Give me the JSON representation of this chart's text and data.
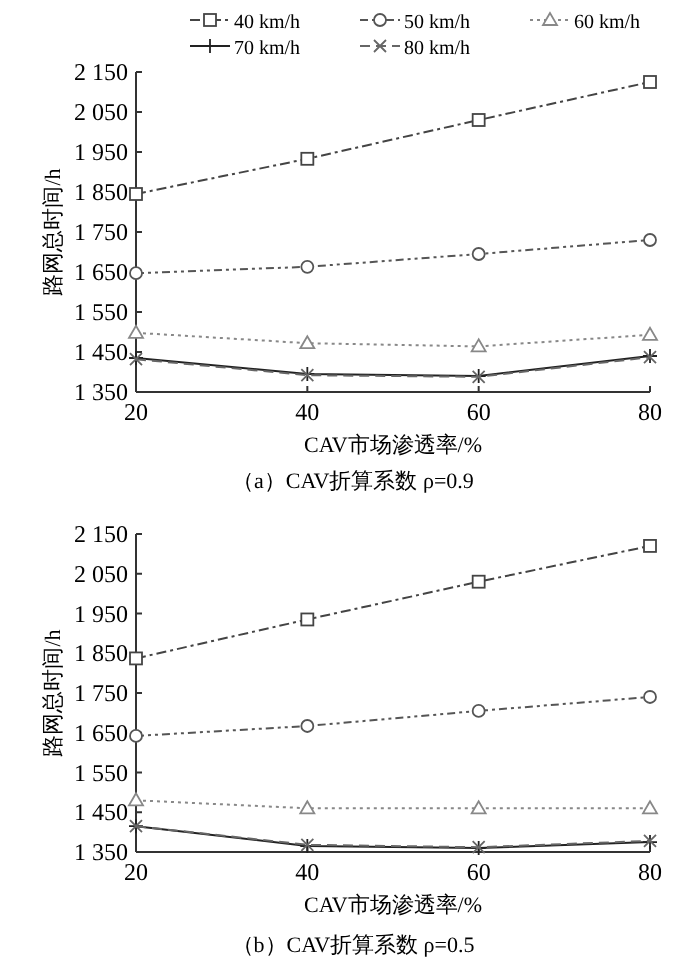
{
  "chart_data": [
    {
      "type": "line",
      "title": "（a）CAV折算系数 ρ=0.9",
      "xlabel": "CAV市场渗透率/%",
      "ylabel": "路网总时间/h",
      "legend": "top",
      "grid": false,
      "x": [
        20,
        40,
        60,
        80
      ],
      "xlim": [
        20,
        80
      ],
      "xticks": [
        20,
        40,
        60,
        80
      ],
      "ylim": [
        1350,
        2150
      ],
      "yticks": [
        {
          "value": 1350,
          "label": "1 350"
        },
        {
          "value": 1450,
          "label": "1 450"
        },
        {
          "value": 1550,
          "label": "1 550"
        },
        {
          "value": 1650,
          "label": "1 650"
        },
        {
          "value": 1750,
          "label": "1 750"
        },
        {
          "value": 1850,
          "label": "1 850"
        },
        {
          "value": 1950,
          "label": "1 950"
        },
        {
          "value": 2050,
          "label": "2 050"
        },
        {
          "value": 2150,
          "label": "2 150"
        }
      ],
      "series": [
        {
          "name": "40 km/h",
          "color": "#444444",
          "marker": "square",
          "line_style": "dashdot",
          "values": [
            1845,
            1933,
            2030,
            2125
          ]
        },
        {
          "name": "50 km/h",
          "color": "#555555",
          "marker": "circle",
          "line_style": "dashdotdot",
          "values": [
            1647,
            1663,
            1695,
            1730
          ]
        },
        {
          "name": "60 km/h",
          "color": "#888888",
          "marker": "triangle",
          "line_style": "dotted",
          "values": [
            1498,
            1472,
            1464,
            1493
          ]
        },
        {
          "name": "70 km/h",
          "color": "#222222",
          "marker": "plus",
          "line_style": "solid",
          "values": [
            1435,
            1395,
            1390,
            1440
          ]
        },
        {
          "name": "80 km/h",
          "color": "#666666",
          "marker": "cross",
          "line_style": "dashed",
          "values": [
            1432,
            1392,
            1388,
            1437
          ]
        }
      ]
    },
    {
      "type": "line",
      "title": "（b）CAV折算系数 ρ=0.5",
      "xlabel": "CAV市场渗透率/%",
      "ylabel": "路网总时间/h",
      "grid": false,
      "x": [
        20,
        40,
        60,
        80
      ],
      "xlim": [
        20,
        80
      ],
      "xticks": [
        20,
        40,
        60,
        80
      ],
      "ylim": [
        1350,
        2150
      ],
      "yticks": [
        {
          "value": 1350,
          "label": "1 350"
        },
        {
          "value": 1450,
          "label": "1 450"
        },
        {
          "value": 1550,
          "label": "1 550"
        },
        {
          "value": 1650,
          "label": "1 650"
        },
        {
          "value": 1750,
          "label": "1 750"
        },
        {
          "value": 1850,
          "label": "1 850"
        },
        {
          "value": 1950,
          "label": "1 950"
        },
        {
          "value": 2050,
          "label": "2 050"
        },
        {
          "value": 2150,
          "label": "2 150"
        }
      ],
      "series": [
        {
          "color": "#444444",
          "marker": "square",
          "line_style": "dashdot",
          "values": [
            1837,
            1935,
            2030,
            2120
          ]
        },
        {
          "color": "#555555",
          "marker": "circle",
          "line_style": "dashdotdot",
          "values": [
            1642,
            1667,
            1705,
            1740
          ]
        },
        {
          "color": "#888888",
          "marker": "triangle",
          "line_style": "dotted",
          "values": [
            1480,
            1460,
            1460,
            1460
          ]
        },
        {
          "color": "#222222",
          "marker": "plus",
          "line_style": "solid",
          "values": [
            1415,
            1365,
            1360,
            1375
          ]
        },
        {
          "color": "#666666",
          "marker": "cross",
          "line_style": "dashed",
          "values": [
            1415,
            1368,
            1362,
            1378
          ]
        }
      ]
    }
  ]
}
